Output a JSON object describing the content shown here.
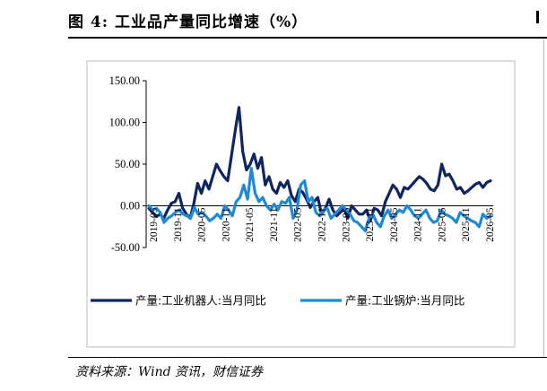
{
  "figure": {
    "title": "图 4:  工业品产量同比增速（%）",
    "source": "资料来源：Wind 资讯，财信证券"
  },
  "chart_data": {
    "type": "line",
    "ylim": [
      -50,
      150
    ],
    "yticks": [
      150,
      100,
      50,
      0,
      -50
    ],
    "ytick_labels": [
      "150.00",
      "100.00",
      "50.00",
      "0.00",
      "-50.00"
    ],
    "xtick_labels": [
      "2019-05",
      "2019-11",
      "2020-05",
      "2020-11",
      "2021-05",
      "2021-11",
      "2022-05",
      "2022-11",
      "2023-05",
      "2023-11",
      "2024-05",
      "2024-11",
      "2025-05",
      "2025-11",
      "2026-05"
    ],
    "legend_position": "bottom",
    "series": [
      {
        "name": "产量:工业机器人:当月同比",
        "color": "#0f2561",
        "values": [
          -3,
          -8,
          -13,
          -10,
          -15,
          -5,
          3,
          5,
          15,
          -3,
          -10,
          -15,
          3,
          27,
          15,
          30,
          20,
          35,
          50,
          42,
          35,
          30,
          60,
          90,
          118,
          65,
          43,
          50,
          62,
          45,
          58,
          25,
          35,
          20,
          15,
          28,
          22,
          30,
          12,
          5,
          20,
          16,
          8,
          -2,
          5,
          10,
          -10,
          -3,
          8,
          -5,
          -12,
          -8,
          -3,
          -15,
          0,
          -5,
          -10,
          -10,
          -5,
          -18,
          -3,
          -5,
          -12,
          5,
          15,
          25,
          20,
          10,
          22,
          20,
          25,
          30,
          35,
          32,
          27,
          20,
          18,
          25,
          50,
          36,
          38,
          30,
          20,
          22,
          15,
          18,
          22,
          26,
          28,
          22,
          28,
          30
        ]
      },
      {
        "name": "产量:工业锅炉:当月同比",
        "color": "#1c8ad6",
        "values": [
          0,
          -5,
          -3,
          -8,
          -20,
          -15,
          -12,
          -8,
          -5,
          -10,
          -12,
          -15,
          -2,
          -10,
          -8,
          -12,
          -18,
          -15,
          -10,
          -15,
          0,
          -5,
          -12,
          5,
          10,
          25,
          8,
          45,
          15,
          5,
          10,
          0,
          -5,
          2,
          -5,
          5,
          3,
          10,
          -15,
          -5,
          25,
          30,
          5,
          10,
          -8,
          -12,
          -5,
          -3,
          -15,
          -10,
          -5,
          0,
          -5,
          -10,
          -18,
          -20,
          -25,
          -30,
          -15,
          -10,
          -20,
          -25,
          -12,
          -5,
          -15,
          -10,
          -5,
          -8,
          0,
          -5,
          -12,
          -15,
          -10,
          -5,
          -15,
          -20,
          -18,
          -5,
          -10,
          -12,
          -15,
          -20,
          -8,
          -12,
          -15,
          -18,
          -20,
          -25,
          -10,
          -15,
          -12
        ]
      }
    ]
  }
}
